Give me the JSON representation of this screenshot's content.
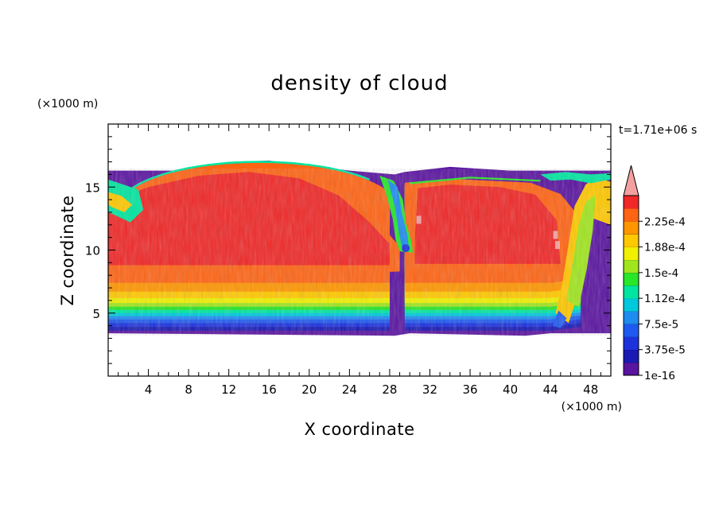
{
  "chart_data": {
    "type": "heatmap",
    "title": "density of cloud",
    "xlabel": "X coordinate",
    "ylabel": "Z coordinate",
    "x_unit": "(×1000 m)",
    "y_unit": "(×1000 m)",
    "time_label": "t=1.71e+06 s",
    "xlim": [
      0,
      50
    ],
    "ylim": [
      0,
      20
    ],
    "x_ticks": [
      "4",
      "8",
      "12",
      "16",
      "20",
      "24",
      "28",
      "32",
      "36",
      "40",
      "44",
      "48"
    ],
    "y_ticks": [
      "5",
      "10",
      "15"
    ],
    "x_minor_step": 1,
    "y_minor_step": 1,
    "colorbar": {
      "levels": [
        1e-16,
        1.875e-05,
        3.75e-05,
        5.625e-05,
        7.5e-05,
        9.375e-05,
        0.0001125,
        0.00013125,
        0.00015,
        0.00016875,
        0.0001875,
        0.00020625,
        0.000225,
        0.00024375
      ],
      "colors": [
        "#5a14a0",
        "#1a1ab4",
        "#1e32dc",
        "#1e5af0",
        "#1e8cf0",
        "#00c8dc",
        "#00e6a0",
        "#28e628",
        "#a0e61e",
        "#f0f000",
        "#ffc800",
        "#ff9600",
        "#ff6414",
        "#f02828"
      ],
      "extend_color": "#f4a0a0",
      "labeled_levels": [
        "2.25e-4",
        "1.88e-4",
        "1.5e-4",
        "1.12e-4",
        "7.5e-5",
        "3.75e-5",
        "1e-16"
      ]
    },
    "field_notes": {
      "cloud_layer_z_range": [
        3.4,
        16.5
      ],
      "core_density_max_approx": 0.00024,
      "dome_top_center_x": 15,
      "dome_top_z": 17.1,
      "gap_x": 28.6
    }
  }
}
